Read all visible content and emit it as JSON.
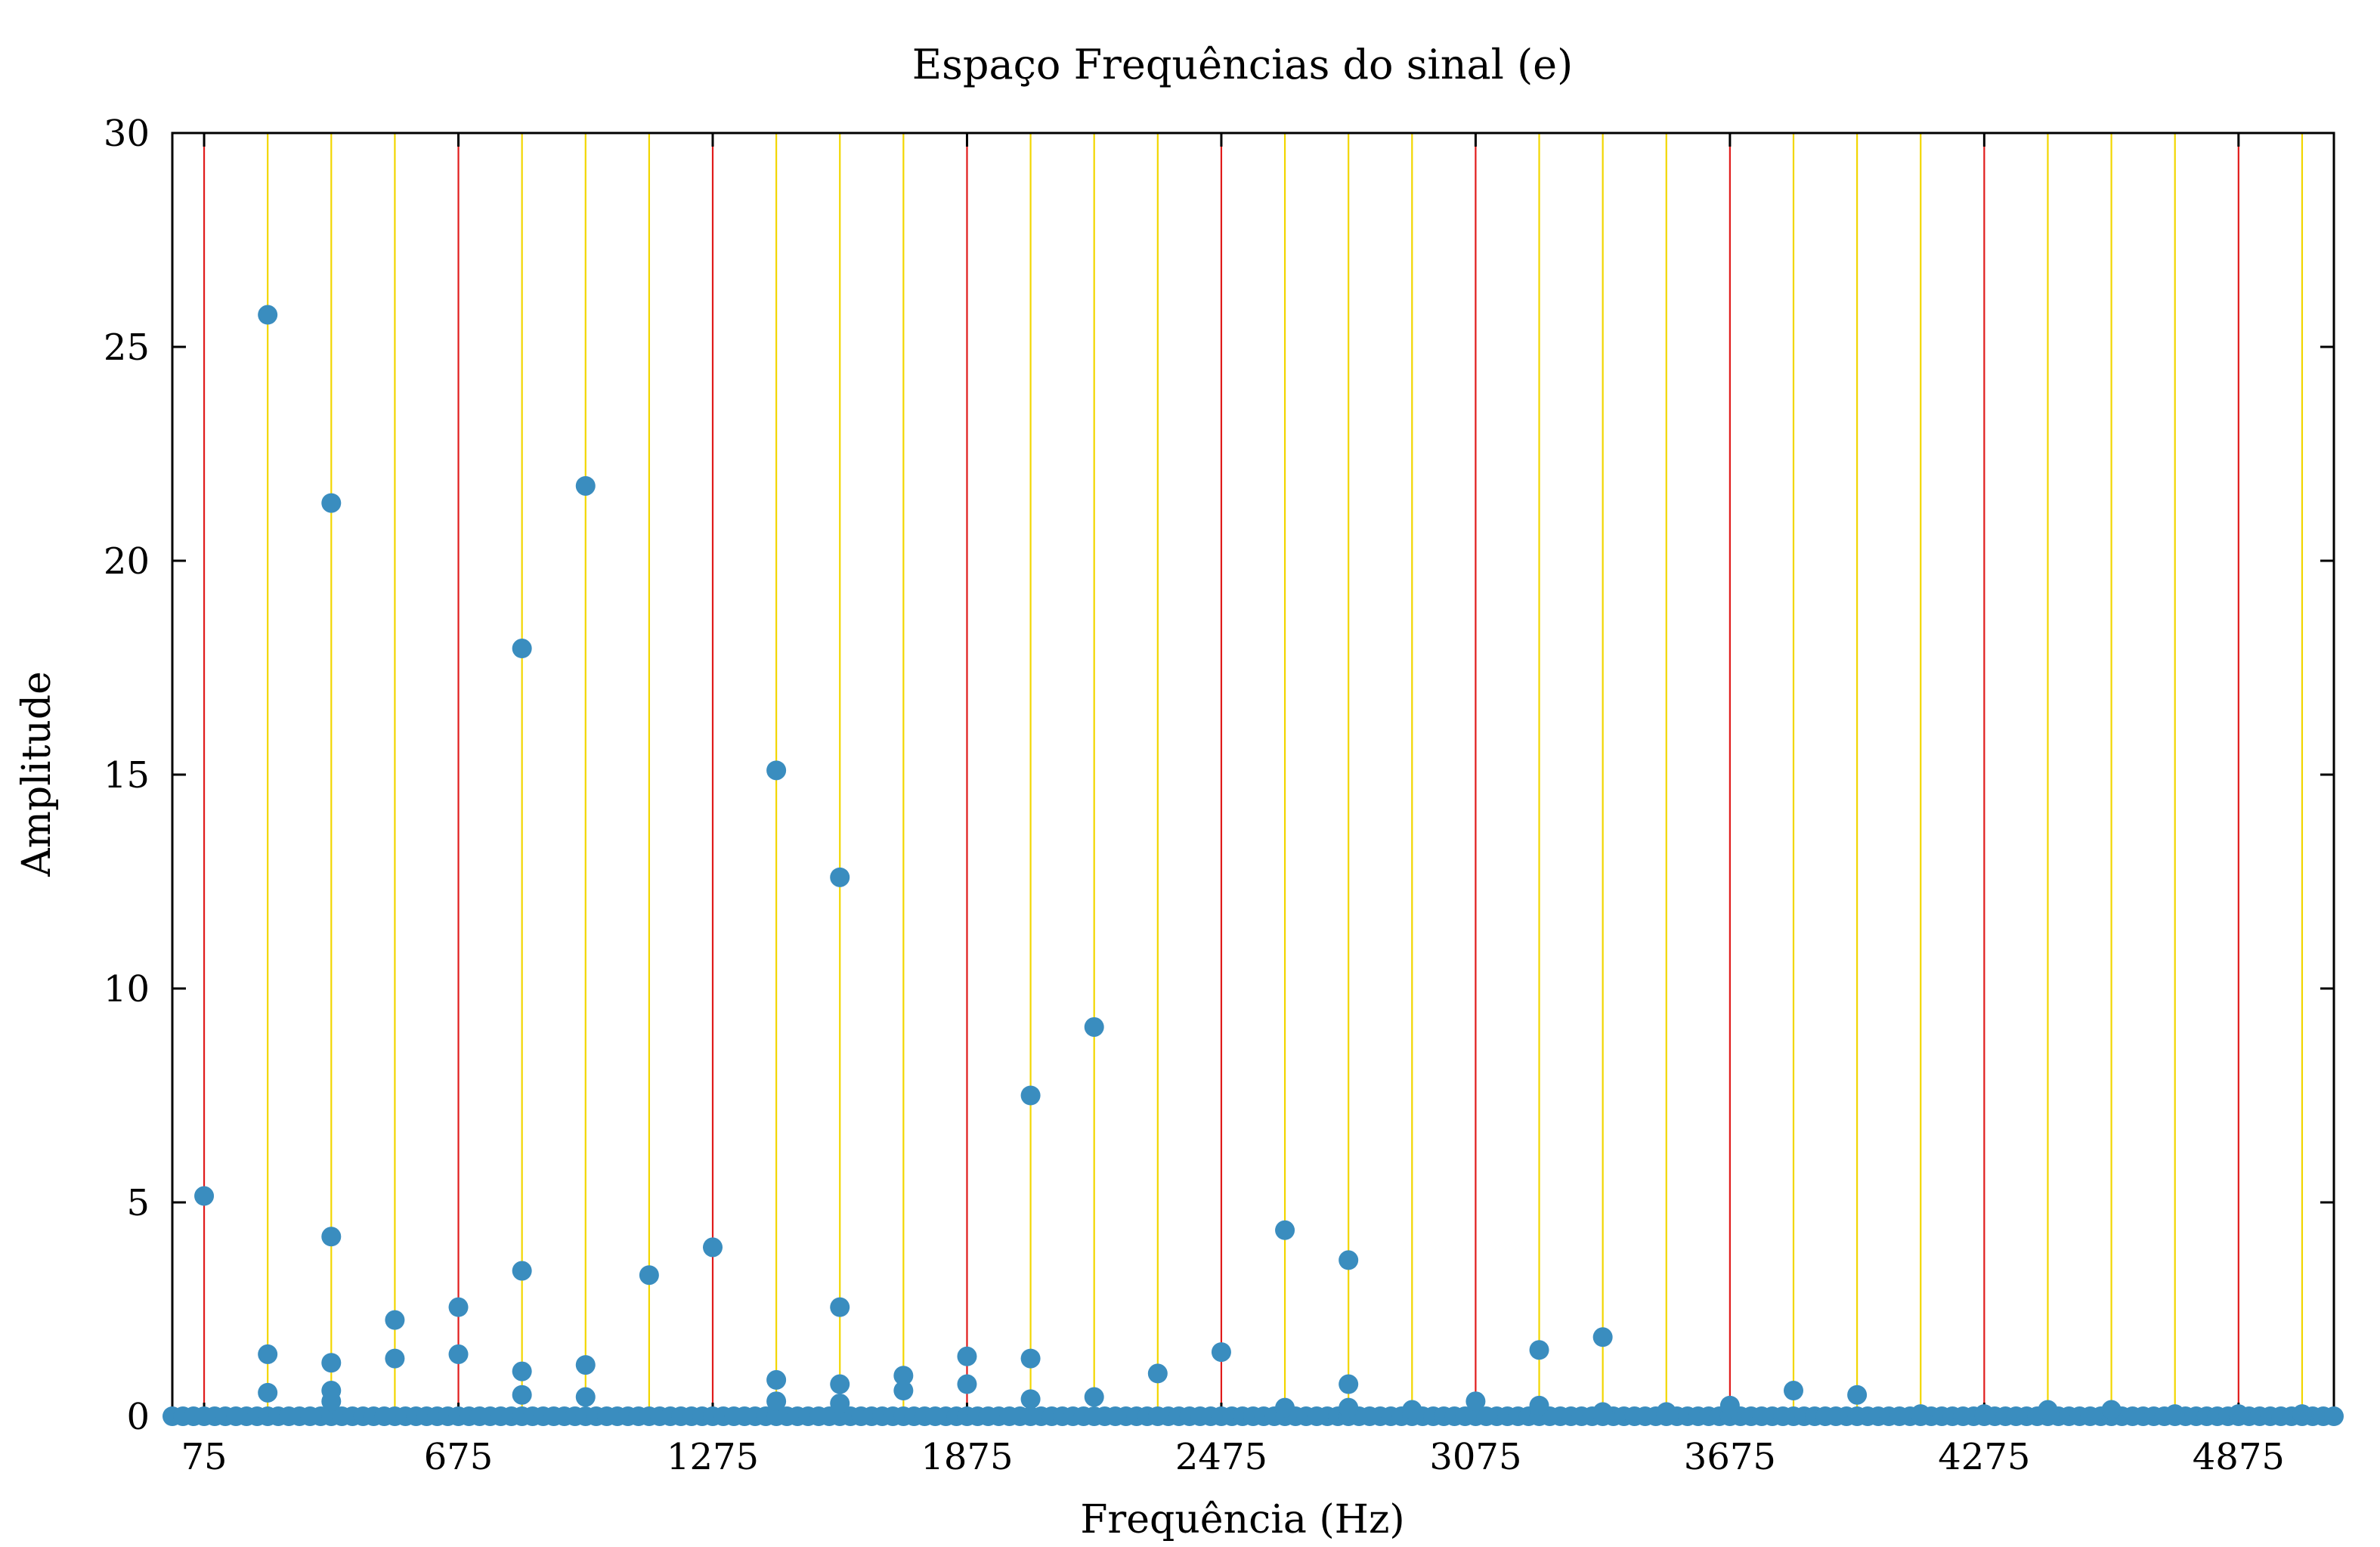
{
  "chart_data": {
    "type": "scatter",
    "title": "Espaço Frequências do sinal (e)",
    "xlabel": "Frequência (Hz)",
    "ylabel": "Amplitude",
    "xlim": [
      0,
      5100
    ],
    "ylim": [
      0,
      30
    ],
    "x_ticks": [
      75,
      675,
      1275,
      1875,
      2475,
      3075,
      3675,
      4275,
      4875
    ],
    "y_ticks": [
      0,
      5,
      10,
      15,
      20,
      25,
      30
    ],
    "grid": false,
    "legend": "none",
    "colors": {
      "points": "#3a8dbf",
      "red_lines": "#e01b1b",
      "yellow_lines": "#f2d600"
    },
    "red_reference_lines": [
      75,
      675,
      1275,
      1875,
      2475,
      3075,
      3675,
      4275,
      4875
    ],
    "yellow_reference_lines": [
      225,
      375,
      525,
      825,
      975,
      1125,
      1425,
      1575,
      1725,
      2025,
      2175,
      2325,
      2625,
      2775,
      2925,
      3225,
      3375,
      3525,
      3825,
      3975,
      4125,
      4425,
      4575,
      4725,
      5025
    ],
    "points": [
      {
        "x": 75,
        "y": 5.15
      },
      {
        "x": 225,
        "y": 25.75
      },
      {
        "x": 225,
        "y": 1.45
      },
      {
        "x": 225,
        "y": 0.55
      },
      {
        "x": 375,
        "y": 21.35
      },
      {
        "x": 375,
        "y": 4.2
      },
      {
        "x": 375,
        "y": 1.25
      },
      {
        "x": 375,
        "y": 0.6
      },
      {
        "x": 375,
        "y": 0.35
      },
      {
        "x": 525,
        "y": 2.25
      },
      {
        "x": 525,
        "y": 1.35
      },
      {
        "x": 675,
        "y": 2.55
      },
      {
        "x": 675,
        "y": 1.45
      },
      {
        "x": 825,
        "y": 17.95
      },
      {
        "x": 825,
        "y": 3.4
      },
      {
        "x": 825,
        "y": 1.05
      },
      {
        "x": 825,
        "y": 0.5
      },
      {
        "x": 975,
        "y": 21.75
      },
      {
        "x": 975,
        "y": 1.2
      },
      {
        "x": 975,
        "y": 0.45
      },
      {
        "x": 1125,
        "y": 3.3
      },
      {
        "x": 1275,
        "y": 3.95
      },
      {
        "x": 1425,
        "y": 15.1
      },
      {
        "x": 1425,
        "y": 0.85
      },
      {
        "x": 1425,
        "y": 0.35
      },
      {
        "x": 1575,
        "y": 12.6
      },
      {
        "x": 1575,
        "y": 2.55
      },
      {
        "x": 1575,
        "y": 0.75
      },
      {
        "x": 1575,
        "y": 0.3
      },
      {
        "x": 1725,
        "y": 0.95
      },
      {
        "x": 1725,
        "y": 0.6
      },
      {
        "x": 1875,
        "y": 1.4
      },
      {
        "x": 1875,
        "y": 0.75
      },
      {
        "x": 2025,
        "y": 7.5
      },
      {
        "x": 2025,
        "y": 1.35
      },
      {
        "x": 2025,
        "y": 0.4
      },
      {
        "x": 2175,
        "y": 9.1
      },
      {
        "x": 2175,
        "y": 0.45
      },
      {
        "x": 2325,
        "y": 1.0
      },
      {
        "x": 2475,
        "y": 1.5
      },
      {
        "x": 2625,
        "y": 4.35
      },
      {
        "x": 2625,
        "y": 0.2
      },
      {
        "x": 2775,
        "y": 3.65
      },
      {
        "x": 2775,
        "y": 0.75
      },
      {
        "x": 2775,
        "y": 0.2
      },
      {
        "x": 2925,
        "y": 0.15
      },
      {
        "x": 3075,
        "y": 0.35
      },
      {
        "x": 3225,
        "y": 1.55
      },
      {
        "x": 3225,
        "y": 0.25
      },
      {
        "x": 3375,
        "y": 1.85
      },
      {
        "x": 3375,
        "y": 0.1
      },
      {
        "x": 3525,
        "y": 0.1
      },
      {
        "x": 3675,
        "y": 0.25
      },
      {
        "x": 3825,
        "y": 0.6
      },
      {
        "x": 3975,
        "y": 0.5
      },
      {
        "x": 4125,
        "y": 0.05
      },
      {
        "x": 4275,
        "y": 0.05
      },
      {
        "x": 4425,
        "y": 0.15
      },
      {
        "x": 4575,
        "y": 0.15
      },
      {
        "x": 4725,
        "y": 0.05
      },
      {
        "x": 4875,
        "y": 0.05
      },
      {
        "x": 5025,
        "y": 0.05
      }
    ],
    "baseline_floor": {
      "y": 0,
      "x_from": 0,
      "x_to": 5100,
      "x_step": 25
    }
  }
}
